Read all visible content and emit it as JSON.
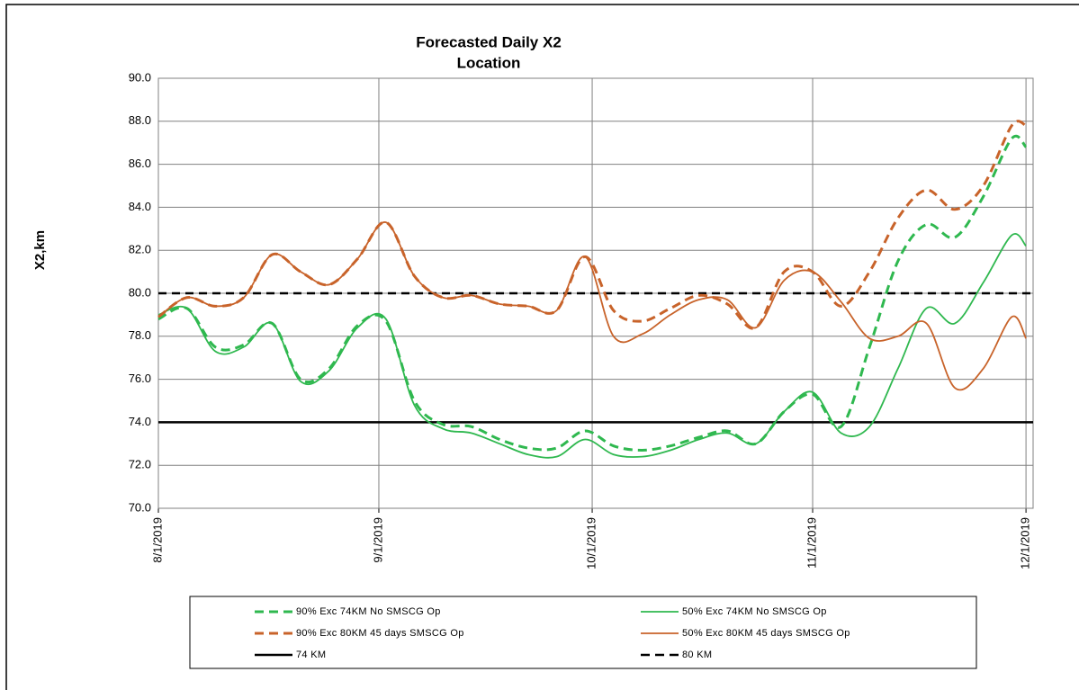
{
  "chart_data": {
    "type": "line",
    "title": "Forecasted Daily X2",
    "subtitle": "Location",
    "y_label": "X2,km",
    "x": [
      "8/1/2019",
      "8/5/2019",
      "8/9/2019",
      "8/13/2019",
      "8/17/2019",
      "8/21/2019",
      "8/25/2019",
      "8/29/2019",
      "9/2/2019",
      "9/6/2019",
      "9/10/2019",
      "9/14/2019",
      "9/18/2019",
      "9/22/2019",
      "9/26/2019",
      "9/30/2019",
      "10/4/2019",
      "10/8/2019",
      "10/12/2019",
      "10/16/2019",
      "10/20/2019",
      "10/24/2019",
      "10/28/2019",
      "11/1/2019",
      "11/5/2019",
      "11/9/2019",
      "11/13/2019",
      "11/17/2019",
      "11/21/2019",
      "11/25/2019",
      "11/29/2019",
      "12/1/2019"
    ],
    "series": [
      {
        "name": "90% Exc 74KM No SMSCG Op",
        "color": "#2fb84f",
        "dashed": true,
        "values": [
          78.8,
          79.3,
          77.5,
          77.6,
          78.6,
          76.0,
          76.5,
          78.5,
          78.7,
          75.0,
          73.9,
          73.8,
          73.2,
          72.8,
          72.8,
          73.6,
          72.9,
          72.7,
          72.9,
          73.3,
          73.6,
          73.0,
          74.5,
          75.3,
          73.8,
          77.5,
          81.5,
          83.2,
          82.6,
          84.5,
          87.2,
          86.8
        ]
      },
      {
        "name": "50% Exc 74KM No SMSCG Op",
        "color": "#2fb84f",
        "dashed": false,
        "values": [
          79.0,
          79.3,
          77.3,
          77.5,
          78.6,
          75.9,
          76.4,
          78.4,
          78.8,
          74.8,
          73.7,
          73.5,
          73.0,
          72.5,
          72.4,
          73.2,
          72.5,
          72.4,
          72.7,
          73.2,
          73.5,
          73.0,
          74.5,
          75.4,
          73.5,
          73.8,
          76.5,
          79.3,
          78.6,
          80.5,
          82.7,
          82.2
        ]
      },
      {
        "name": "90% Exc 80KM 45 days SMSCG Op",
        "color": "#c8632a",
        "dashed": true,
        "values": [
          78.9,
          79.8,
          79.4,
          79.8,
          81.8,
          81.0,
          80.4,
          81.6,
          83.3,
          80.8,
          79.8,
          79.9,
          79.5,
          79.4,
          79.2,
          81.7,
          79.2,
          78.7,
          79.3,
          79.9,
          79.5,
          78.4,
          81.0,
          81.0,
          79.4,
          81.0,
          83.5,
          84.8,
          83.9,
          85.0,
          87.8,
          87.8
        ]
      },
      {
        "name": "50% Exc 80KM 45 days SMSCG Op",
        "color": "#c8632a",
        "dashed": false,
        "values": [
          78.9,
          79.8,
          79.4,
          79.8,
          81.8,
          81.0,
          80.4,
          81.6,
          83.3,
          80.8,
          79.8,
          79.9,
          79.5,
          79.4,
          79.2,
          81.7,
          78.0,
          78.1,
          79.0,
          79.7,
          79.7,
          78.4,
          80.6,
          81.0,
          79.6,
          77.9,
          78.0,
          78.6,
          75.6,
          76.5,
          78.9,
          77.9
        ]
      }
    ],
    "reference_lines": [
      {
        "name": "74 KM",
        "value": 74,
        "color": "#000000",
        "dashed": false
      },
      {
        "name": "80 KM",
        "value": 80,
        "color": "#000000",
        "dashed": true
      }
    ],
    "xlim": [
      "8/1/2019",
      "12/2/2019"
    ],
    "xticks": [
      "8/1/2019",
      "9/1/2019",
      "10/1/2019",
      "11/1/2019",
      "12/1/2019"
    ],
    "ylim": [
      70,
      90
    ],
    "yticks": [
      {
        "value": 70,
        "label": "70.0"
      },
      {
        "value": 72,
        "label": "72.0"
      },
      {
        "value": 74,
        "label": "74.0"
      },
      {
        "value": 76,
        "label": "76.0"
      },
      {
        "value": 78,
        "label": "78.0"
      },
      {
        "value": 80,
        "label": "80.0"
      },
      {
        "value": 82,
        "label": "82.0"
      },
      {
        "value": 84,
        "label": "84.0"
      },
      {
        "value": 86,
        "label": "86.0"
      },
      {
        "value": 88,
        "label": "88.0"
      },
      {
        "value": 90,
        "label": "90.0"
      }
    ],
    "grid": true
  }
}
